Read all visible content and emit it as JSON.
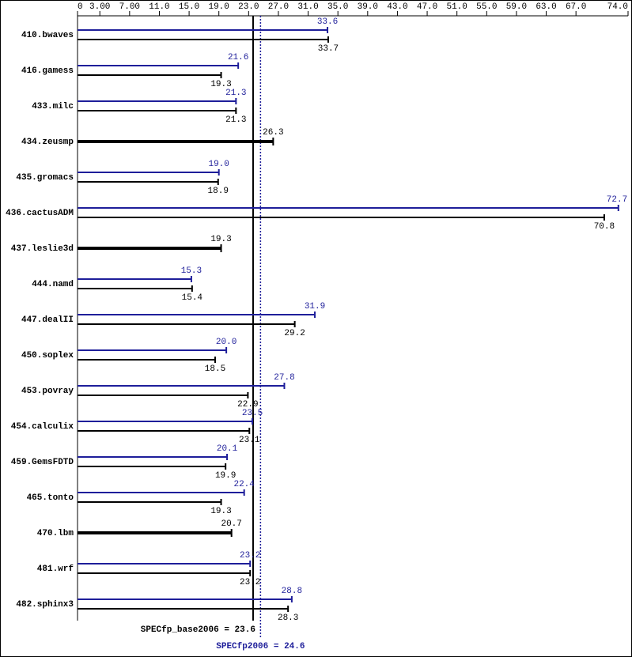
{
  "chart_data": {
    "type": "hbar-range",
    "categories": [
      "410.bwaves",
      "416.gamess",
      "433.milc",
      "434.zeusmp",
      "435.gromacs",
      "436.cactusADM",
      "437.leslie3d",
      "444.namd",
      "447.dealII",
      "450.soplex",
      "453.povray",
      "454.calculix",
      "459.GemsFDTD",
      "465.tonto",
      "470.lbm",
      "481.wrf",
      "482.sphinx3"
    ],
    "series": [
      {
        "color": "#1e1e9a",
        "values": [
          33.6,
          21.6,
          21.3,
          null,
          19.0,
          72.7,
          null,
          15.3,
          31.9,
          20.0,
          27.8,
          23.5,
          20.1,
          22.4,
          null,
          23.2,
          28.8
        ],
        "value_labels": [
          "33.6",
          "21.6",
          "21.3",
          null,
          "19.0",
          "72.7",
          null,
          "15.3",
          "31.9",
          "20.0",
          "27.8",
          "23.5",
          "20.1",
          "22.4",
          null,
          "23.2",
          "28.8"
        ]
      },
      {
        "color": "#000000",
        "values": [
          33.7,
          19.3,
          21.3,
          26.3,
          18.9,
          70.8,
          19.3,
          15.4,
          29.2,
          18.5,
          22.9,
          23.1,
          19.9,
          19.3,
          20.7,
          23.2,
          28.3
        ]
      }
    ],
    "xlim": [
      0,
      74.0
    ],
    "xticks": [
      0,
      {
        "value": 3,
        "label": "3.00"
      },
      {
        "value": 7,
        "label": "7.00"
      },
      {
        "value": 11,
        "label": "11.0"
      },
      {
        "value": 15,
        "label": "15.0"
      },
      {
        "value": 19,
        "label": "19.0"
      },
      {
        "value": 23,
        "label": "23.0"
      },
      {
        "value": 27,
        "label": "27.0"
      },
      {
        "value": 31,
        "label": "31.0"
      },
      {
        "value": 35,
        "label": "35.0"
      },
      {
        "value": 39,
        "label": "39.0"
      },
      {
        "value": 43,
        "label": "43.0"
      },
      {
        "value": 47,
        "label": "47.0"
      },
      {
        "value": 51,
        "label": "51.0"
      },
      {
        "value": 55,
        "label": "55.0"
      },
      {
        "value": 59,
        "label": "59.0"
      },
      {
        "value": 63,
        "label": "63.0"
      },
      {
        "value": 67,
        "label": "67.0"
      },
      {
        "value": 74,
        "label": "74.0"
      }
    ],
    "reference_lines": [
      {
        "value": 23.6,
        "label": "SPECfp_base2006 = 23.6",
        "color": "#000000"
      },
      {
        "value": 24.6,
        "label": "SPECfp2006 = 24.6",
        "color": "#1e1e9a"
      }
    ]
  }
}
